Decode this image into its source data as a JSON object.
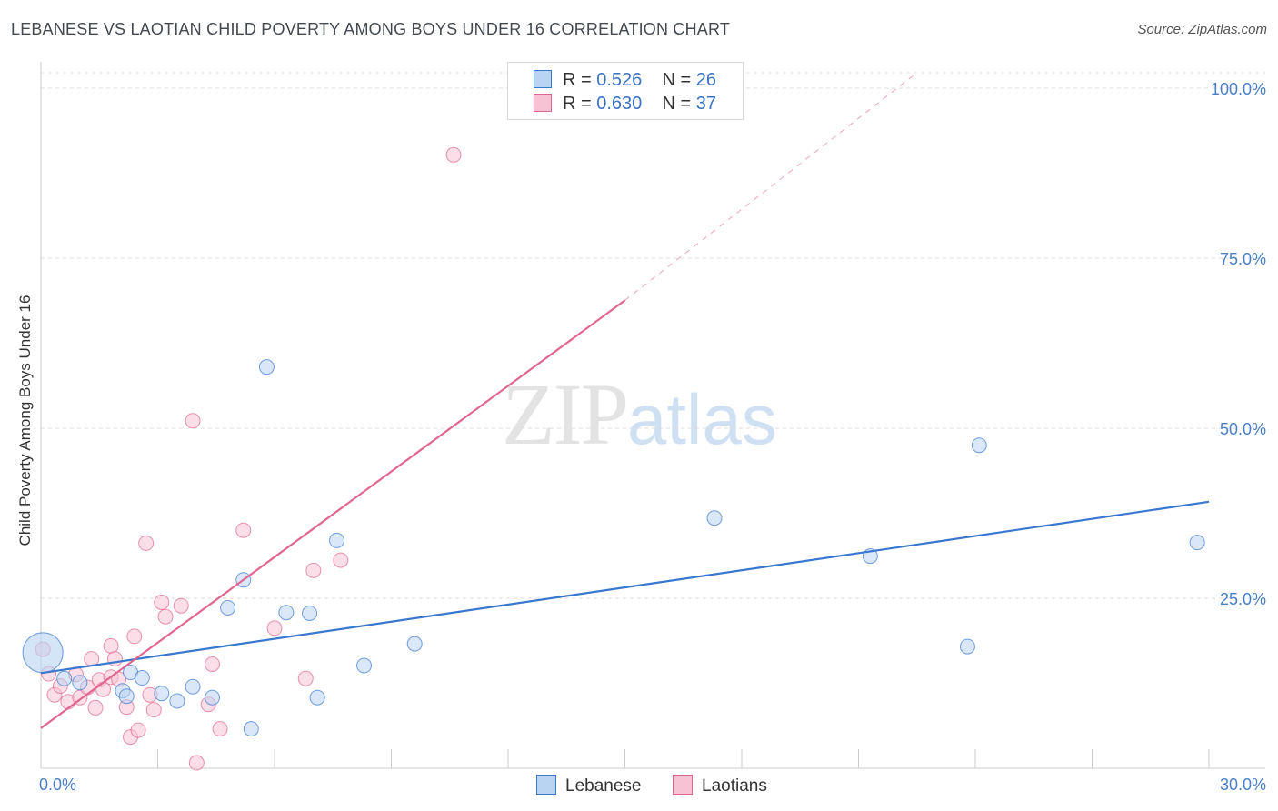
{
  "title": "LEBANESE VS LAOTIAN CHILD POVERTY AMONG BOYS UNDER 16 CORRELATION CHART",
  "source": "Source: ZipAtlas.com",
  "watermark": {
    "zip": "ZIP",
    "atlas": "atlas"
  },
  "legend": {
    "lebanese": {
      "r_label": "R = ",
      "r_value": "0.526",
      "n_label": "N = ",
      "n_value": "26"
    },
    "laotians": {
      "r_label": "R = ",
      "r_value": "0.630",
      "n_label": "N = ",
      "n_value": "37"
    }
  },
  "bottom_legend": {
    "lebanese": "Lebanese",
    "laotians": "Laotians"
  },
  "chart_data": {
    "type": "scatter",
    "title": "LEBANESE VS LAOTIAN CHILD POVERTY AMONG BOYS UNDER 16 CORRELATION CHART",
    "xlabel": "",
    "ylabel": "Child Poverty Among Boys Under 16",
    "xlim": [
      0,
      30
    ],
    "ylim": [
      0,
      100
    ],
    "x_tick_labels": [
      {
        "value": 0,
        "label": "0.0%"
      },
      {
        "value": 30,
        "label": "30.0%"
      }
    ],
    "y_tick_labels": [
      {
        "value": 25,
        "label": "25.0%"
      },
      {
        "value": 50,
        "label": "50.0%"
      },
      {
        "value": 75,
        "label": "75.0%"
      },
      {
        "value": 100,
        "label": "100.0%"
      }
    ],
    "colors": {
      "lebanese": "#3a78d0",
      "lebanese_fill": "#b9d3f3",
      "laotians": "#e0668f",
      "laotians_fill": "#f7c3d4"
    },
    "series": [
      {
        "name": "Lebanese",
        "points": [
          {
            "x": 0.05,
            "y": 17.0,
            "big": true
          },
          {
            "x": 0.6,
            "y": 13.2
          },
          {
            "x": 1.0,
            "y": 12.6
          },
          {
            "x": 2.1,
            "y": 11.4
          },
          {
            "x": 2.3,
            "y": 14.1
          },
          {
            "x": 2.2,
            "y": 10.6
          },
          {
            "x": 2.6,
            "y": 13.3
          },
          {
            "x": 3.1,
            "y": 11.0
          },
          {
            "x": 3.5,
            "y": 9.9
          },
          {
            "x": 3.9,
            "y": 12.0
          },
          {
            "x": 4.4,
            "y": 10.4
          },
          {
            "x": 4.8,
            "y": 23.6
          },
          {
            "x": 5.2,
            "y": 27.7
          },
          {
            "x": 5.4,
            "y": 5.8
          },
          {
            "x": 5.8,
            "y": 59.0
          },
          {
            "x": 6.3,
            "y": 22.9
          },
          {
            "x": 6.9,
            "y": 22.8
          },
          {
            "x": 7.1,
            "y": 10.4
          },
          {
            "x": 7.6,
            "y": 33.5
          },
          {
            "x": 8.3,
            "y": 15.1
          },
          {
            "x": 9.6,
            "y": 18.3
          },
          {
            "x": 17.3,
            "y": 36.8
          },
          {
            "x": 21.3,
            "y": 31.2
          },
          {
            "x": 23.8,
            "y": 17.9
          },
          {
            "x": 24.1,
            "y": 47.5
          },
          {
            "x": 29.7,
            "y": 33.2
          }
        ],
        "trend": {
          "x0": 0,
          "y0": 14.0,
          "x1": 30,
          "y1": 39.2
        }
      },
      {
        "name": "Laotians",
        "points": [
          {
            "x": 0.05,
            "y": 17.5
          },
          {
            "x": 0.2,
            "y": 13.9
          },
          {
            "x": 0.35,
            "y": 10.8
          },
          {
            "x": 0.5,
            "y": 12.1
          },
          {
            "x": 0.7,
            "y": 9.8
          },
          {
            "x": 0.9,
            "y": 13.8
          },
          {
            "x": 1.0,
            "y": 10.4
          },
          {
            "x": 1.2,
            "y": 11.9
          },
          {
            "x": 1.3,
            "y": 16.1
          },
          {
            "x": 1.4,
            "y": 8.9
          },
          {
            "x": 1.5,
            "y": 13.0
          },
          {
            "x": 1.6,
            "y": 11.6
          },
          {
            "x": 1.8,
            "y": 13.4
          },
          {
            "x": 1.8,
            "y": 18.0
          },
          {
            "x": 1.9,
            "y": 16.1
          },
          {
            "x": 2.0,
            "y": 13.1
          },
          {
            "x": 2.2,
            "y": 9.0
          },
          {
            "x": 2.3,
            "y": 4.6
          },
          {
            "x": 2.4,
            "y": 19.4
          },
          {
            "x": 2.5,
            "y": 5.6
          },
          {
            "x": 2.7,
            "y": 33.1
          },
          {
            "x": 2.8,
            "y": 10.8
          },
          {
            "x": 2.9,
            "y": 8.6
          },
          {
            "x": 3.1,
            "y": 24.4
          },
          {
            "x": 3.2,
            "y": 22.3
          },
          {
            "x": 3.6,
            "y": 23.9
          },
          {
            "x": 3.9,
            "y": 51.1
          },
          {
            "x": 4.0,
            "y": 0.8
          },
          {
            "x": 4.3,
            "y": 9.4
          },
          {
            "x": 4.4,
            "y": 15.3
          },
          {
            "x": 4.6,
            "y": 5.8
          },
          {
            "x": 5.2,
            "y": 35.0
          },
          {
            "x": 6.0,
            "y": 20.6
          },
          {
            "x": 6.8,
            "y": 13.2
          },
          {
            "x": 7.0,
            "y": 29.1
          },
          {
            "x": 7.7,
            "y": 30.6
          },
          {
            "x": 10.6,
            "y": 90.2
          }
        ],
        "trend": {
          "x0": 0,
          "y0": 5.9,
          "x1": 15.0,
          "y1": 68.8
        },
        "trend_extension": {
          "x0": 15.0,
          "y0": 68.8,
          "x1": 22.5,
          "y1": 100
        }
      }
    ]
  }
}
